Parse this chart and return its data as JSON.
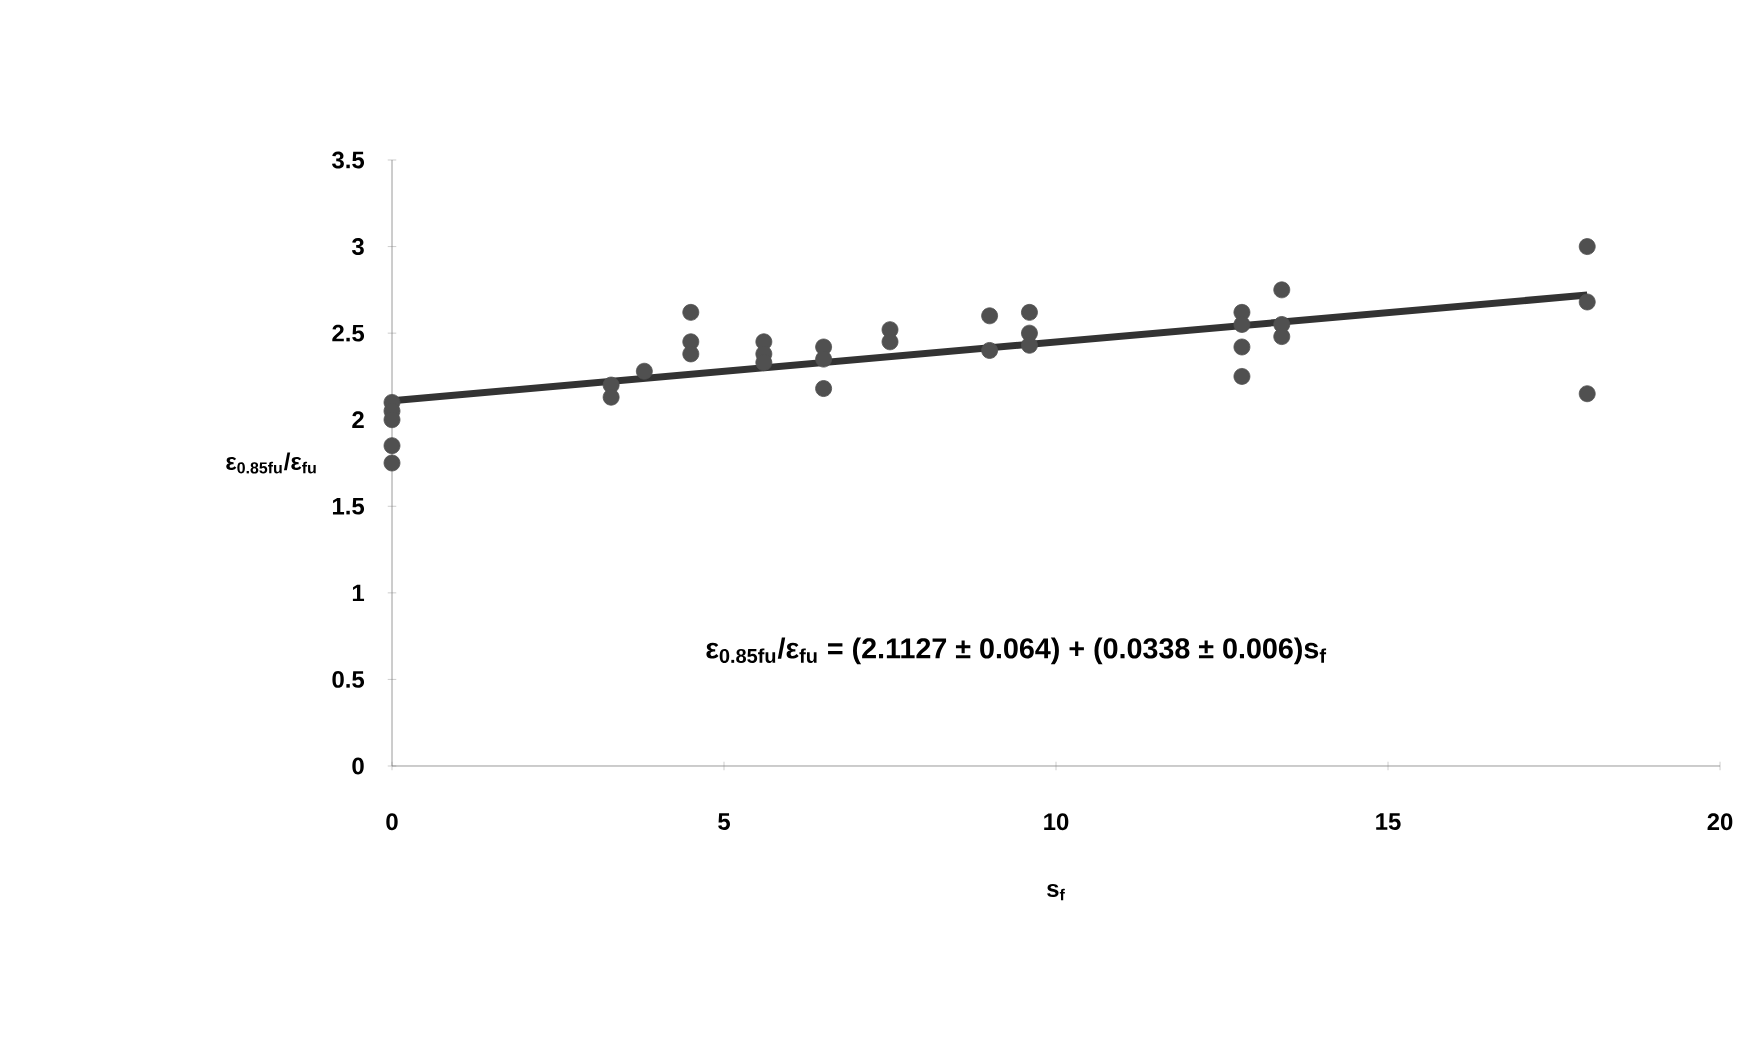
{
  "chart_data": {
    "type": "scatter",
    "xlabel": "s$_{f}$",
    "ylabel": "ε$_{0.85fu}$/ε$_{fu}$",
    "xlim": [
      0,
      20
    ],
    "ylim": [
      0,
      3.5
    ],
    "xticks": [
      0,
      5,
      10,
      15,
      20
    ],
    "yticks": [
      0,
      0.5,
      1,
      1.5,
      2,
      2.5,
      3,
      3.5
    ],
    "grid": false,
    "series": [
      {
        "marker": "circle",
        "color": "#505050",
        "x": [
          0,
          0,
          0,
          0,
          0,
          3.3,
          3.3,
          3.8,
          4.5,
          4.5,
          4.5,
          5.6,
          5.6,
          5.6,
          6.5,
          6.5,
          6.5,
          7.5,
          7.5,
          9,
          9,
          9.6,
          9.6,
          9.6,
          12.8,
          12.8,
          12.8,
          12.8,
          13.4,
          13.4,
          13.4,
          18,
          18,
          18
        ],
        "values": [
          2.1,
          2.05,
          2.0,
          1.85,
          1.75,
          2.2,
          2.13,
          2.28,
          2.62,
          2.45,
          2.38,
          2.45,
          2.38,
          2.33,
          2.42,
          2.35,
          2.18,
          2.52,
          2.45,
          2.6,
          2.4,
          2.62,
          2.5,
          2.43,
          2.62,
          2.55,
          2.42,
          2.25,
          2.75,
          2.55,
          2.48,
          3.0,
          2.68,
          2.15
        ]
      },
      {
        "type": "line",
        "color": "#333333",
        "x": [
          0,
          18
        ],
        "values": [
          2.11,
          2.72
        ]
      }
    ],
    "annotations": [
      "ε$_{0.85fu}$/ε$_{fu}$ = (2.1127 ± 0.064) + (0.0338 ± 0.006)s$_{f}$"
    ]
  }
}
